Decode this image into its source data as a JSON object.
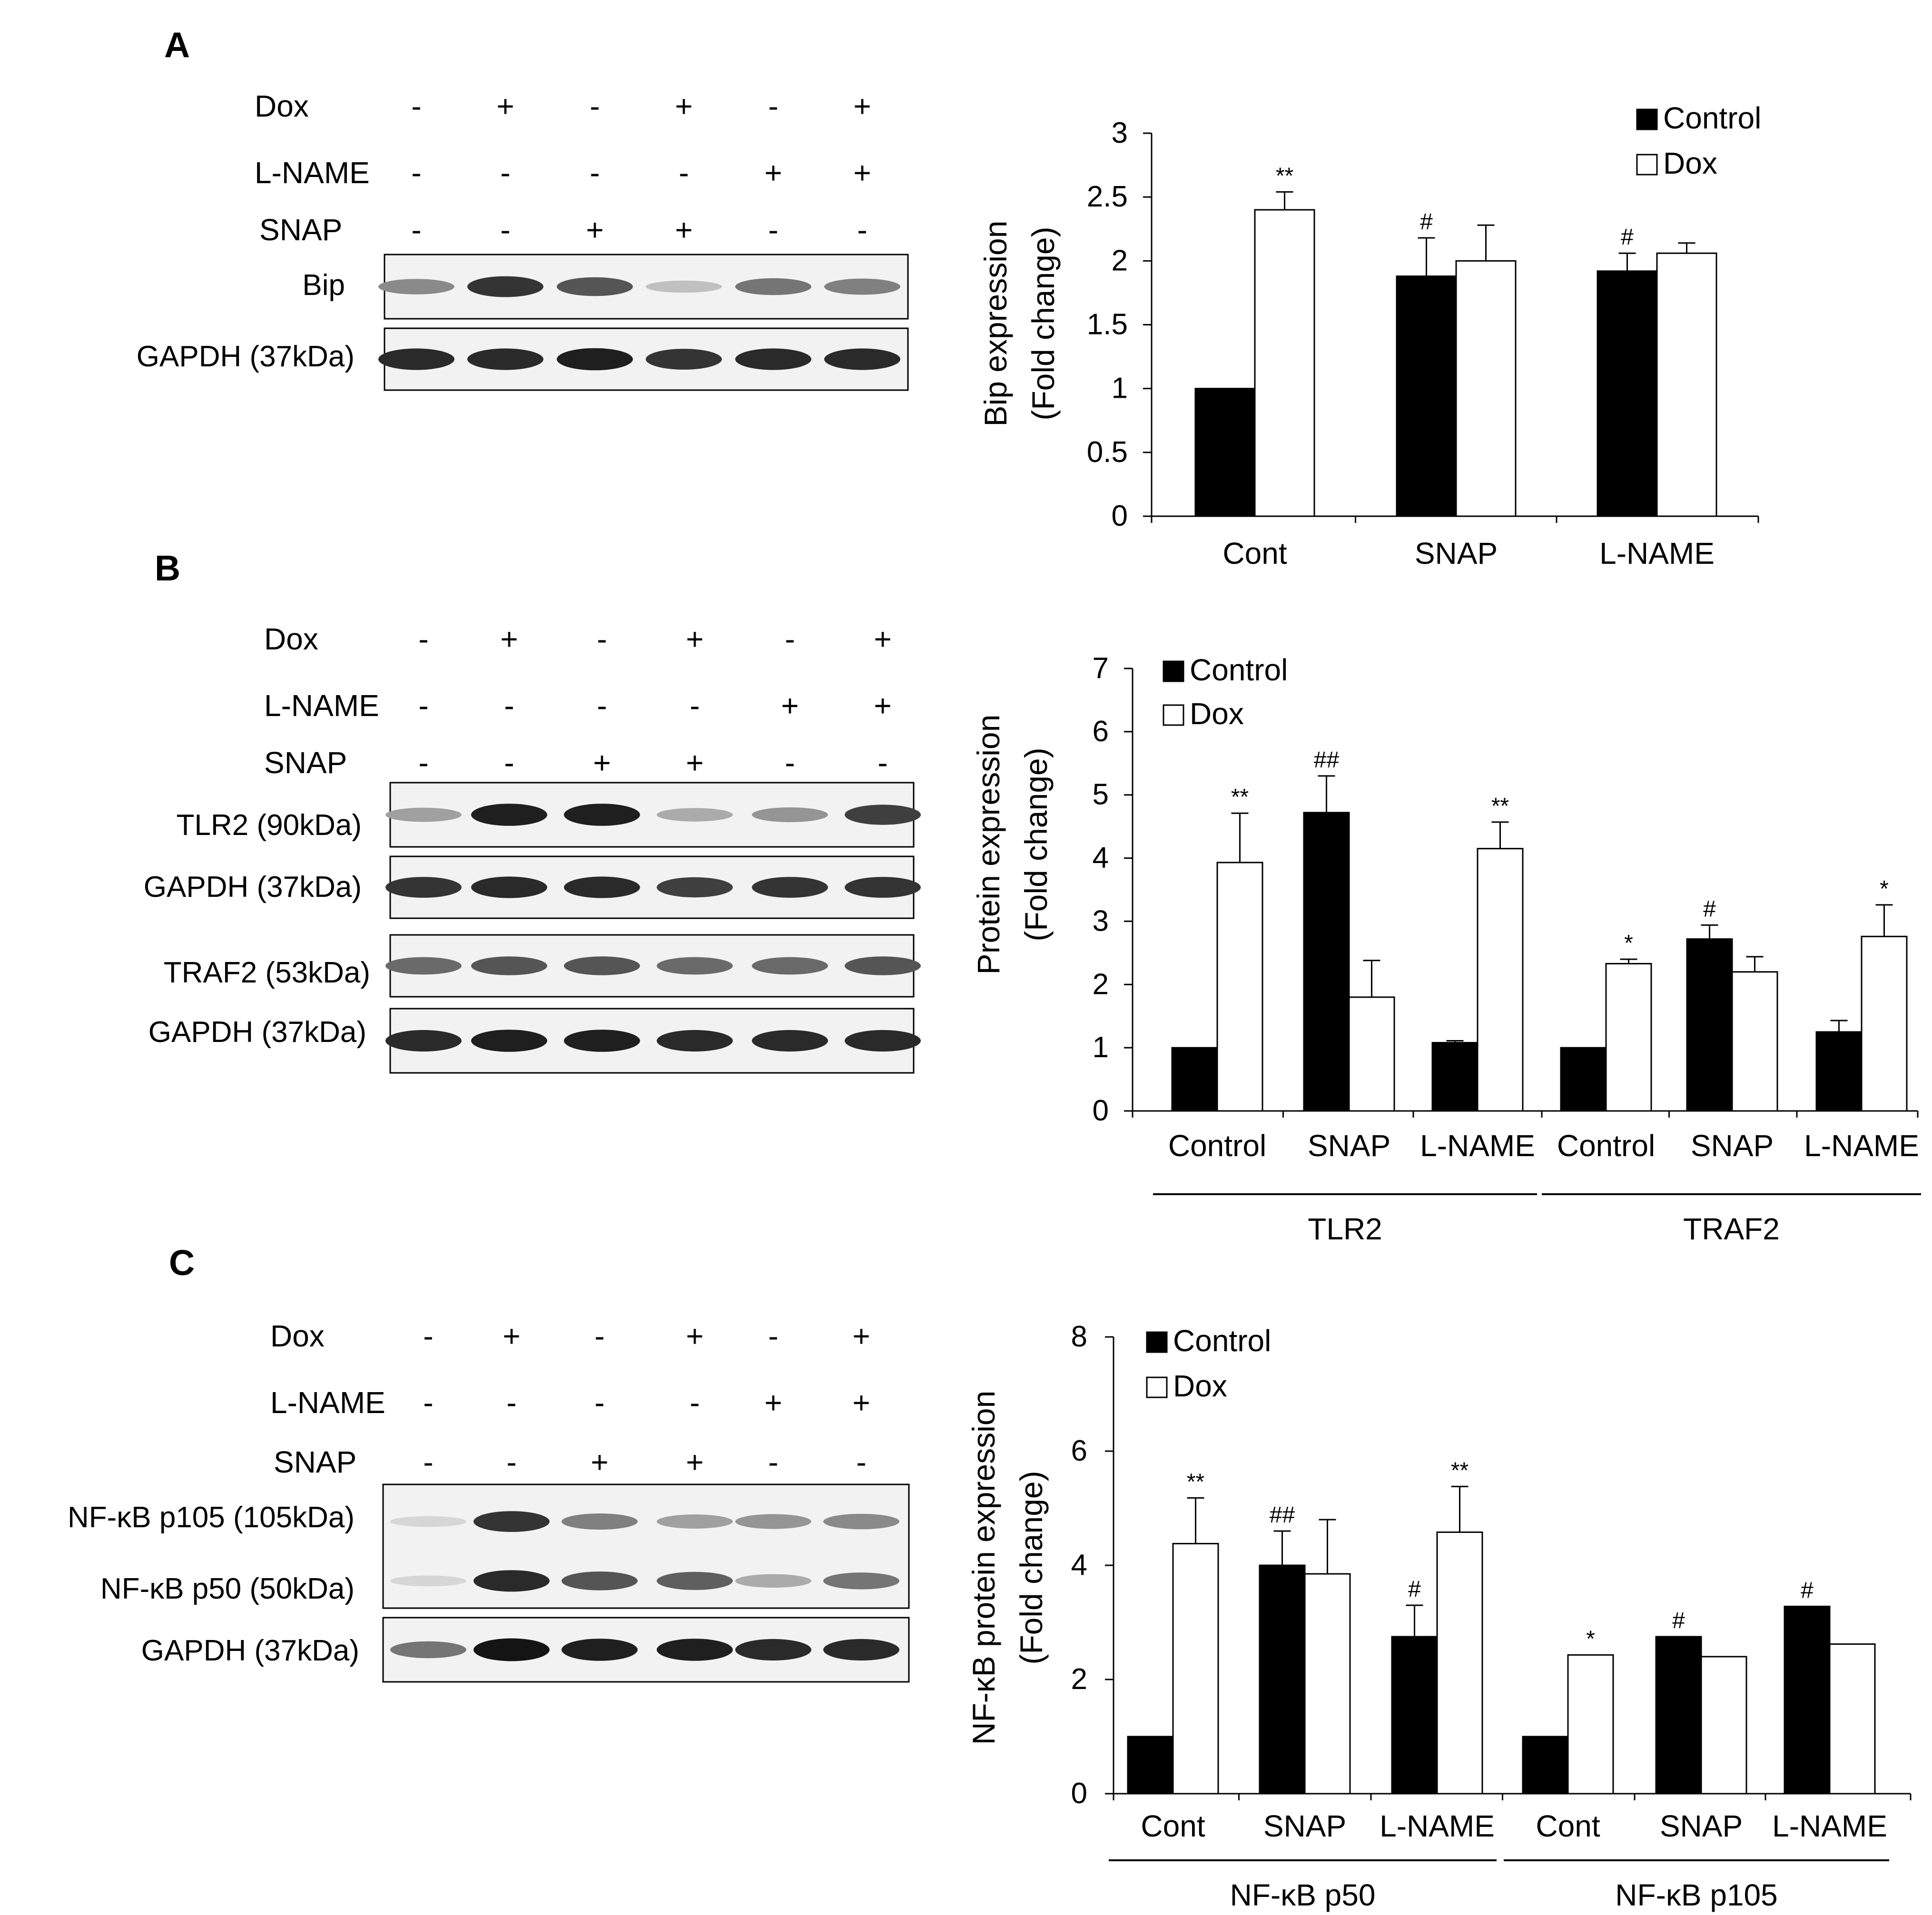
{
  "panels": [
    {
      "letter": "A",
      "blot": {
        "rows": [
          {
            "label": "Dox",
            "signs": [
              "-",
              "+",
              "-",
              "+",
              "-",
              "+"
            ]
          },
          {
            "label": "L-NAME",
            "signs": [
              "-",
              "-",
              "-",
              "-",
              "+",
              "+"
            ]
          },
          {
            "label": "SNAP",
            "signs": [
              "-",
              "-",
              "+",
              "+",
              "-",
              "-"
            ]
          }
        ],
        "bands": [
          {
            "label": "Bip",
            "intensity": [
              0.45,
              0.85,
              0.7,
              0.2,
              0.55,
              0.5
            ]
          },
          {
            "label": "GAPDH (37kDa)",
            "intensity": [
              0.9,
              0.9,
              0.95,
              0.85,
              0.9,
              0.9
            ]
          }
        ]
      }
    },
    {
      "letter": "B",
      "blot": {
        "rows": [
          {
            "label": "Dox",
            "signs": [
              "-",
              "+",
              "-",
              "+",
              "-",
              "+"
            ]
          },
          {
            "label": "L-NAME",
            "signs": [
              "-",
              "-",
              "-",
              "-",
              "+",
              "+"
            ]
          },
          {
            "label": "SNAP",
            "signs": [
              "-",
              "-",
              "+",
              "+",
              "-",
              "-"
            ]
          }
        ],
        "bands": [
          {
            "label": "TLR2 (90kDa)",
            "intensity": [
              0.35,
              0.95,
              0.95,
              0.3,
              0.4,
              0.8
            ]
          },
          {
            "label": "GAPDH (37kDa)",
            "intensity": [
              0.85,
              0.9,
              0.9,
              0.8,
              0.85,
              0.85
            ]
          },
          {
            "label": "TRAF2 (53kDa)",
            "intensity": [
              0.6,
              0.7,
              0.7,
              0.6,
              0.6,
              0.7
            ]
          },
          {
            "label": "GAPDH (37kDa)",
            "intensity": [
              0.9,
              0.95,
              0.95,
              0.9,
              0.9,
              0.9
            ]
          }
        ]
      }
    },
    {
      "letter": "C",
      "blot": {
        "rows": [
          {
            "label": "Dox",
            "signs": [
              "-",
              "+",
              "-",
              "+",
              "-",
              "+"
            ]
          },
          {
            "label": "L-NAME",
            "signs": [
              "-",
              "-",
              "-",
              "-",
              "+",
              "+"
            ]
          },
          {
            "label": "SNAP",
            "signs": [
              "-",
              "-",
              "+",
              "+",
              "-",
              "-"
            ]
          }
        ],
        "bands": [
          {
            "label": "NF-κB p105 (105kDa)",
            "intensity": [
              0.1,
              0.85,
              0.5,
              0.35,
              0.4,
              0.45
            ]
          },
          {
            "label": "NF-κB p50 (50kDa)",
            "intensity": [
              0.1,
              0.9,
              0.7,
              0.65,
              0.3,
              0.55
            ]
          },
          {
            "label": "GAPDH (37kDa)",
            "intensity": [
              0.55,
              1.0,
              0.95,
              0.95,
              0.9,
              0.9
            ]
          }
        ]
      }
    }
  ],
  "chart_data": [
    {
      "type": "bar",
      "ylabel_lines": [
        "Bip expression",
        "(Fold change)"
      ],
      "categories": [
        "Cont",
        "SNAP",
        "L-NAME"
      ],
      "ylim": [
        0,
        3
      ],
      "yticks": [
        "0",
        "0.5",
        "1",
        "1.5",
        "2",
        "2.5",
        "3"
      ],
      "legend_position": "top-right",
      "series": [
        {
          "name": "Control",
          "fill": "#000000",
          "values": [
            1.0,
            1.88,
            1.92
          ],
          "errors": [
            0,
            0.3,
            0.14
          ],
          "marks": [
            "",
            "#",
            "#"
          ]
        },
        {
          "name": "Dox",
          "fill": "#ffffff",
          "values": [
            2.4,
            2.0,
            2.06
          ],
          "errors": [
            0.14,
            0.28,
            0.08
          ],
          "marks": [
            "**",
            "",
            ""
          ]
        }
      ],
      "groups": []
    },
    {
      "type": "bar",
      "ylabel_lines": [
        "Protein expression",
        "(Fold change)"
      ],
      "categories": [
        "Control",
        "SNAP",
        "L-NAME",
        "Control",
        "SNAP",
        "L-NAME"
      ],
      "ylim": [
        0,
        7
      ],
      "yticks": [
        "0",
        "1",
        "2",
        "3",
        "4",
        "5",
        "6",
        "7"
      ],
      "legend_position": "top-left",
      "series": [
        {
          "name": "Control",
          "fill": "#000000",
          "values": [
            1.0,
            4.72,
            1.08,
            1.0,
            2.72,
            1.25
          ],
          "errors": [
            0,
            0.58,
            0.03,
            0,
            0.22,
            0.18
          ],
          "marks": [
            "",
            "##",
            "",
            "",
            "#",
            ""
          ]
        },
        {
          "name": "Dox",
          "fill": "#ffffff",
          "values": [
            3.93,
            1.8,
            4.15,
            2.33,
            2.2,
            2.76
          ],
          "errors": [
            0.78,
            0.58,
            0.42,
            0.07,
            0.24,
            0.5
          ],
          "marks": [
            "**",
            "",
            "**",
            "*",
            "",
            "*"
          ]
        }
      ],
      "groups": [
        {
          "label": "TLR2",
          "from": 0,
          "to": 2
        },
        {
          "label": "TRAF2",
          "from": 3,
          "to": 5
        }
      ]
    },
    {
      "type": "bar",
      "ylabel_lines": [
        "NF-κB protein  expression",
        "(Fold change)"
      ],
      "categories": [
        "Cont",
        "SNAP",
        "L-NAME",
        "Cont",
        "SNAP",
        "L-NAME"
      ],
      "ylim": [
        0,
        8
      ],
      "yticks": [
        "0",
        "2",
        "4",
        "6",
        "8"
      ],
      "legend_position": "top-left",
      "series": [
        {
          "name": "Control",
          "fill": "#000000",
          "values": [
            1.0,
            4.0,
            2.75,
            1.0,
            2.75,
            3.28
          ],
          "errors": [
            0,
            0.6,
            0.55,
            0,
            0,
            0
          ],
          "marks": [
            "",
            "##",
            "#",
            "",
            "#",
            "#"
          ]
        },
        {
          "name": "Dox",
          "fill": "#ffffff",
          "values": [
            4.38,
            3.85,
            4.58,
            2.43,
            2.4,
            2.62
          ],
          "errors": [
            0.8,
            0.95,
            0.8,
            0,
            0,
            0
          ],
          "marks": [
            "**",
            "",
            "**",
            "*",
            "",
            ""
          ]
        }
      ],
      "groups": [
        {
          "label": "NF-κB p50",
          "from": 0,
          "to": 2
        },
        {
          "label": "NF-κB p105",
          "from": 3,
          "to": 5
        }
      ]
    }
  ]
}
